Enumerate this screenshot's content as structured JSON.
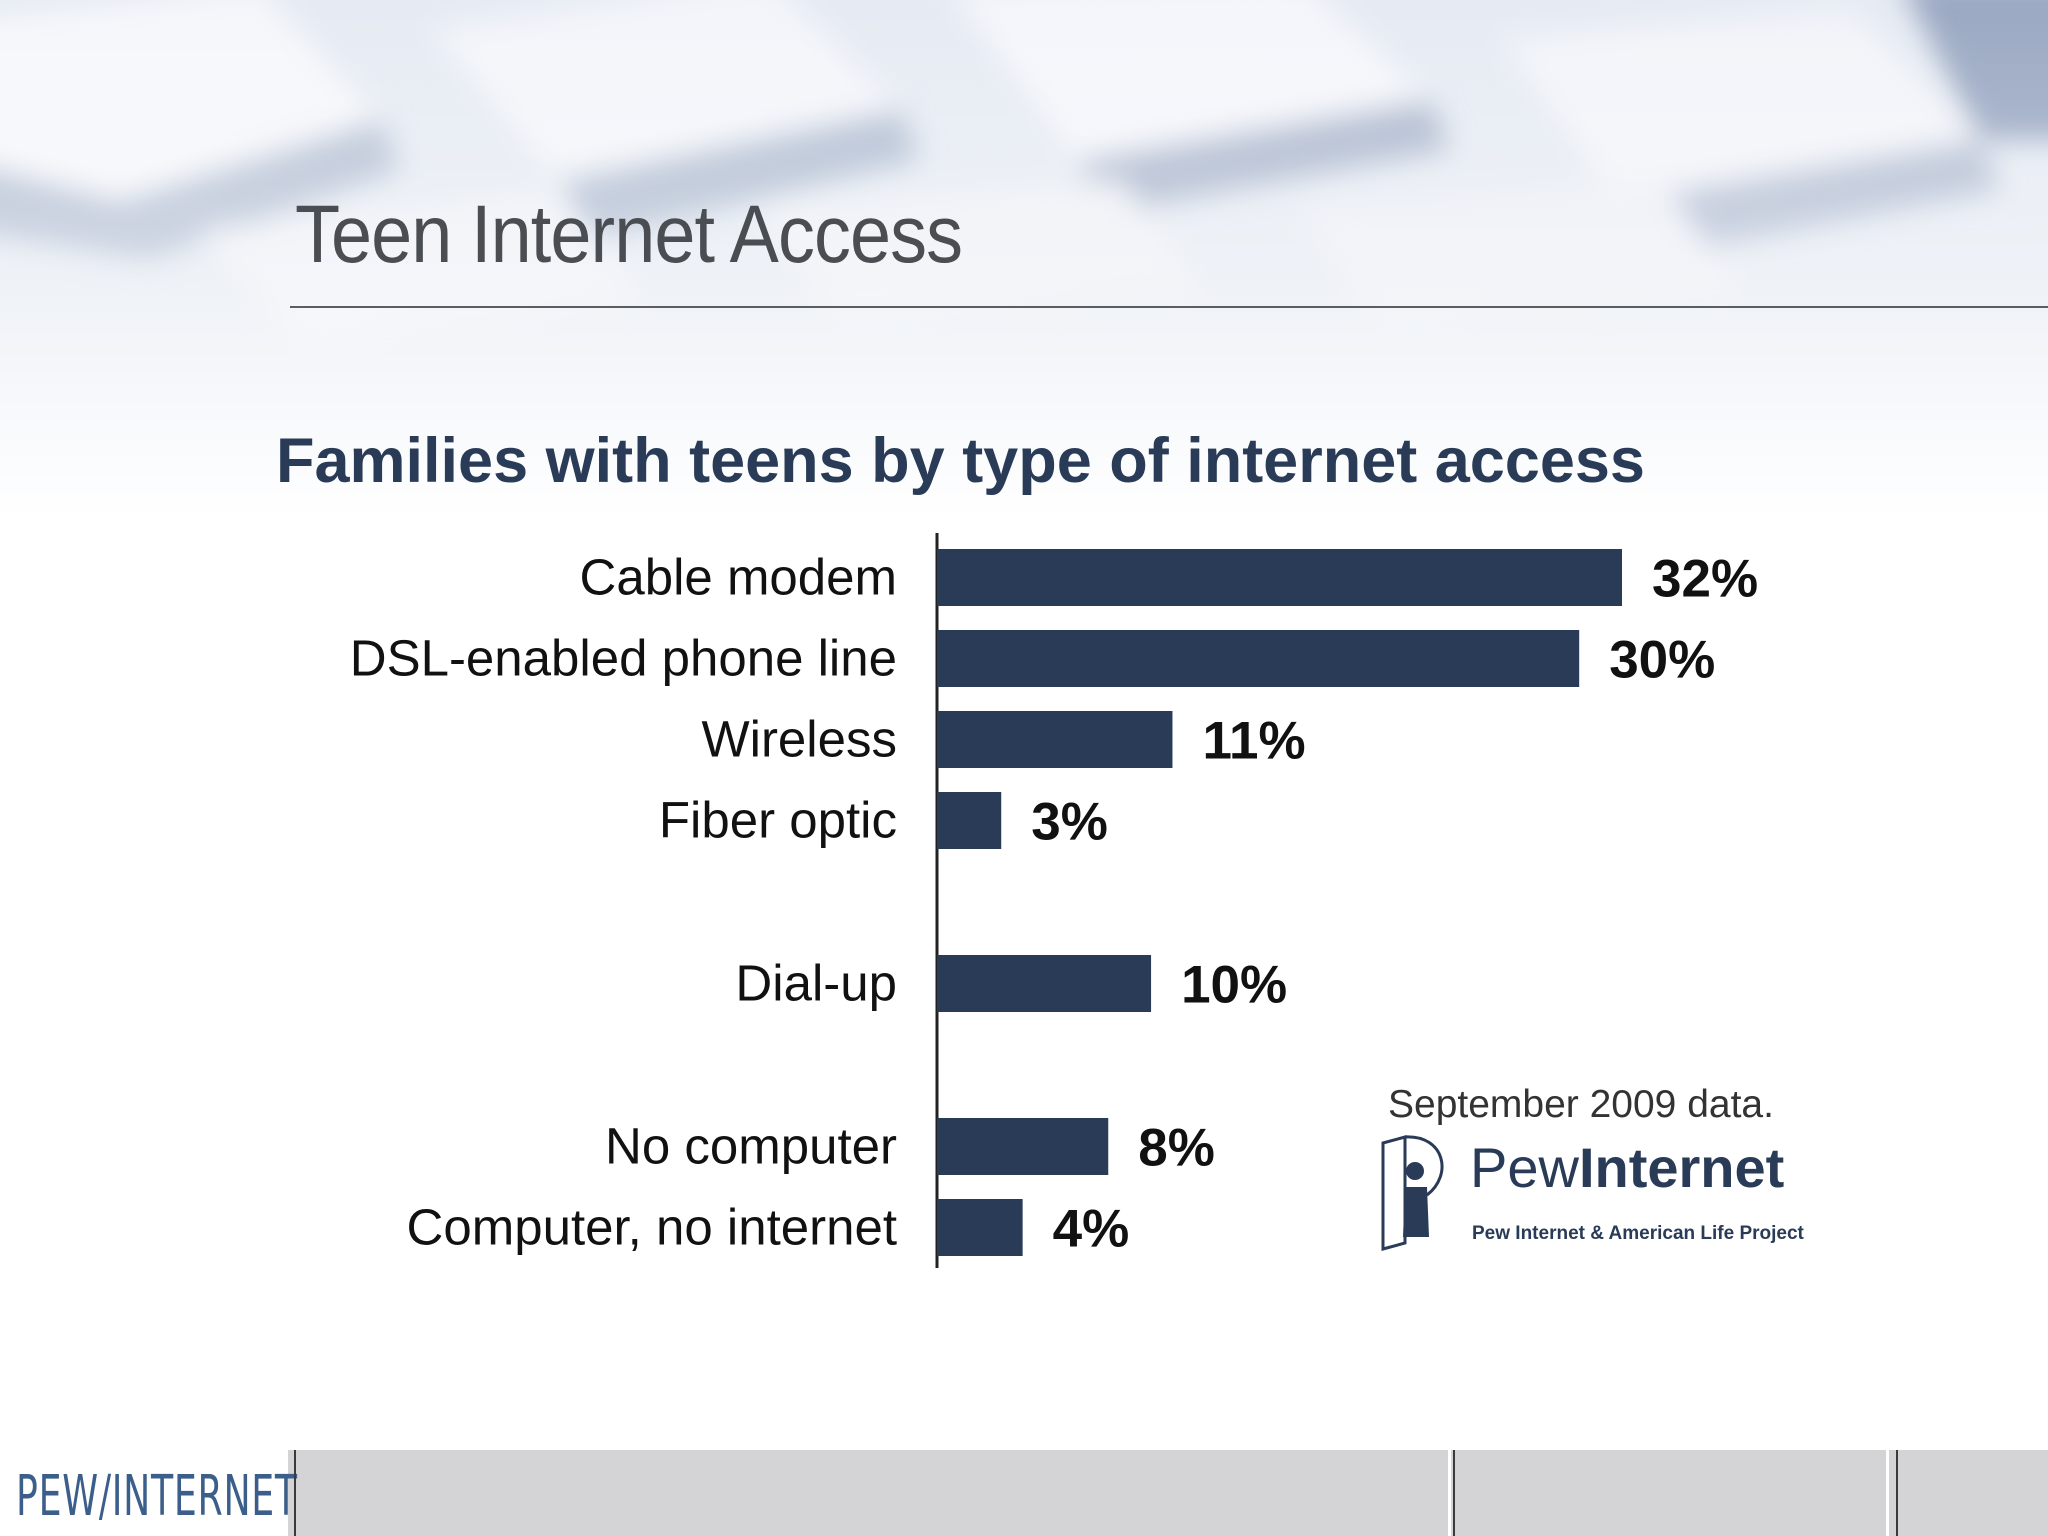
{
  "slide": {
    "title": "Teen Internet Access"
  },
  "chart_data": {
    "type": "bar",
    "orientation": "horizontal",
    "title": "Families with teens by type of internet access",
    "categories": [
      "Cable modem",
      "DSL-enabled phone line",
      "Wireless",
      "Fiber optic",
      "Dial-up",
      "No computer",
      "Computer, no internet"
    ],
    "values": [
      32,
      30,
      11,
      3,
      10,
      8,
      4
    ],
    "value_labels": [
      "32%",
      "30%",
      "11%",
      "3%",
      "10%",
      "8%",
      "4%"
    ],
    "groups": [
      [
        0,
        1,
        2,
        3
      ],
      [
        4
      ],
      [
        5,
        6
      ]
    ],
    "xlim": [
      0,
      32
    ],
    "grid": false,
    "bar_color": "#293b57"
  },
  "annotation": {
    "source_note": "September 2009 data."
  },
  "logo": {
    "pew_light": "Pew",
    "pew_bold": "Internet",
    "pew_subtitle": "Pew Internet & American Life Project"
  },
  "footer": {
    "logo_text": "PEW/INTERNET"
  },
  "colors": {
    "title_text": "#4a4d52",
    "chart_title": "#293b57",
    "footer_bg": "#d4d4d6"
  }
}
